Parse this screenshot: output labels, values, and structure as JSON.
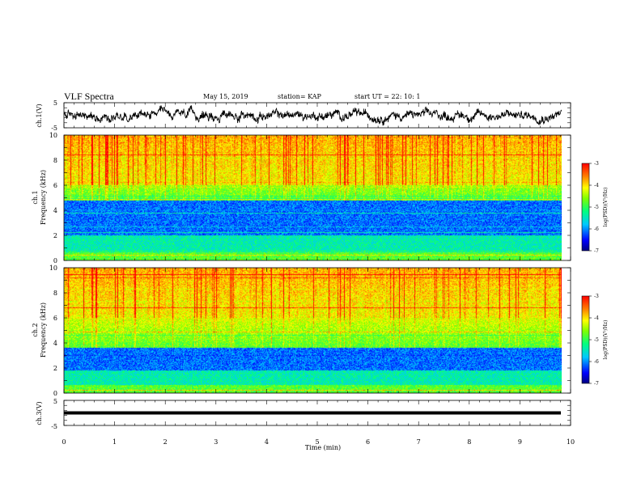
{
  "header": {
    "title": "VLF Spectra",
    "date": "May 15, 2019",
    "station": "station= KAP",
    "start": "start  UT =   22: 10: 1"
  },
  "chart_data": [
    {
      "type": "line",
      "name": "ch1-waveform",
      "ylabel": "ch.1(V)",
      "yticks": [
        "5",
        "-5"
      ],
      "ylim": [
        -5,
        5
      ],
      "xlim": [
        0,
        10
      ],
      "color": "#000000"
    },
    {
      "type": "heatmap",
      "name": "ch1-spectrogram",
      "ylabel_top": "ch.1",
      "ylabel": "Frequency (kHz)",
      "ylim": [
        0,
        10
      ],
      "yticks": [
        "0",
        "2",
        "4",
        "6",
        "8",
        "10"
      ],
      "xlim": [
        0,
        9.85
      ],
      "low_band_khz": [
        2.0,
        4.8
      ],
      "colorbar": {
        "label": "log(PSD)(V²/Hz)",
        "ticks": [
          "-3",
          "-4",
          "-5",
          "-6",
          "-7"
        ],
        "range": [
          -7,
          -3
        ]
      }
    },
    {
      "type": "heatmap",
      "name": "ch2-spectrogram",
      "ylabel_top": "ch.2",
      "ylabel": "Frequency (kHz)",
      "ylim": [
        0,
        10
      ],
      "yticks": [
        "0",
        "2",
        "4",
        "6",
        "8",
        "10"
      ],
      "xlim": [
        0,
        9.85
      ],
      "low_band_khz": [
        1.8,
        3.6
      ],
      "colorbar": {
        "label": "log(PSD)(V²/Hz)",
        "ticks": [
          "-3",
          "-4",
          "-5",
          "-6",
          "-7"
        ],
        "range": [
          -7,
          -3
        ]
      }
    },
    {
      "type": "line",
      "name": "ch3-waveform",
      "ylabel": "ch.3(V)",
      "yticks": [
        "5",
        "-5"
      ],
      "ylim": [
        -5,
        5
      ],
      "xlim": [
        0,
        10
      ],
      "constant_value": 0,
      "color": "#000000"
    }
  ],
  "xaxis": {
    "label": "Time (min)",
    "ticks": [
      "0",
      "1",
      "2",
      "3",
      "4",
      "5",
      "6",
      "7",
      "8",
      "9",
      "10"
    ],
    "range": [
      0,
      10
    ]
  },
  "colors": {
    "low": "#0000cc",
    "mid": "#00ff66",
    "high": "#ff2000"
  }
}
